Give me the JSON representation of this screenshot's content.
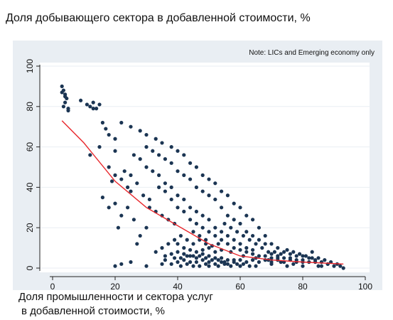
{
  "chart_data": {
    "type": "scatter",
    "title": "Доля добывающего сектора в добавленной стоимости, %",
    "note": "Note: LICs and Emerging economy only",
    "xlabel_line1": "Доля промышленности и сектора услуг",
    "xlabel_line2": "в добавленной стоимости, %",
    "xlim": [
      0,
      100
    ],
    "ylim": [
      0,
      100
    ],
    "x_ticks": [
      "0",
      "20",
      "40",
      "60",
      "80",
      "100"
    ],
    "y_ticks": [
      "0",
      "20",
      "40",
      "60",
      "80",
      "100"
    ],
    "grid": true,
    "colors": {
      "points": "#1b3553",
      "fit": "#e8262b",
      "grid": "#e9eef3"
    },
    "fit_line": {
      "x": [
        3,
        10,
        20,
        30,
        40,
        50,
        60,
        70,
        80,
        93
      ],
      "y": [
        73,
        62,
        43,
        30,
        21,
        12,
        6,
        4,
        3,
        2
      ]
    },
    "points": [
      [
        3,
        90
      ],
      [
        3.5,
        88
      ],
      [
        4,
        86
      ],
      [
        4.5,
        84
      ],
      [
        4,
        82
      ],
      [
        3.5,
        80
      ],
      [
        5,
        79
      ],
      [
        4,
        85
      ],
      [
        5,
        78
      ],
      [
        3,
        87
      ],
      [
        9,
        83
      ],
      [
        11,
        81
      ],
      [
        12,
        80
      ],
      [
        13,
        82
      ],
      [
        14,
        79
      ],
      [
        15,
        81
      ],
      [
        13,
        79
      ],
      [
        16,
        72
      ],
      [
        18,
        66
      ],
      [
        17,
        69
      ],
      [
        20,
        64
      ],
      [
        20,
        58
      ],
      [
        12,
        56
      ],
      [
        15,
        60
      ],
      [
        18,
        50
      ],
      [
        20,
        46
      ],
      [
        22,
        44
      ],
      [
        24,
        40
      ],
      [
        19,
        43
      ],
      [
        25,
        38
      ],
      [
        16,
        35
      ],
      [
        18,
        30
      ],
      [
        20,
        32
      ],
      [
        21,
        20
      ],
      [
        22,
        26
      ],
      [
        24,
        30
      ],
      [
        26,
        24
      ],
      [
        28,
        16
      ],
      [
        30,
        20
      ],
      [
        27,
        12
      ],
      [
        20,
        1
      ],
      [
        22,
        2
      ],
      [
        25,
        3
      ],
      [
        30,
        1
      ],
      [
        35,
        2
      ],
      [
        40,
        3
      ],
      [
        45,
        1
      ],
      [
        50,
        1
      ],
      [
        55,
        2
      ],
      [
        60,
        1
      ],
      [
        65,
        1
      ],
      [
        70,
        2
      ],
      [
        75,
        1
      ],
      [
        80,
        1
      ],
      [
        85,
        1
      ],
      [
        90,
        1
      ],
      [
        93,
        0
      ],
      [
        92,
        1
      ],
      [
        88,
        2
      ],
      [
        86,
        1
      ],
      [
        22,
        72
      ],
      [
        25,
        70
      ],
      [
        28,
        68
      ],
      [
        30,
        66
      ],
      [
        33,
        64
      ],
      [
        35,
        62
      ],
      [
        38,
        60
      ],
      [
        40,
        58
      ],
      [
        42,
        56
      ],
      [
        44,
        52
      ],
      [
        46,
        50
      ],
      [
        48,
        46
      ],
      [
        50,
        44
      ],
      [
        52,
        42
      ],
      [
        54,
        38
      ],
      [
        56,
        36
      ],
      [
        58,
        32
      ],
      [
        60,
        30
      ],
      [
        62,
        26
      ],
      [
        64,
        24
      ],
      [
        66,
        20
      ],
      [
        68,
        16
      ],
      [
        70,
        12
      ],
      [
        72,
        10
      ],
      [
        74,
        8
      ],
      [
        76,
        7
      ],
      [
        78,
        6
      ],
      [
        80,
        6
      ],
      [
        82,
        5
      ],
      [
        84,
        4
      ],
      [
        30,
        60
      ],
      [
        32,
        58
      ],
      [
        34,
        56
      ],
      [
        36,
        54
      ],
      [
        38,
        52
      ],
      [
        40,
        48
      ],
      [
        42,
        46
      ],
      [
        44,
        44
      ],
      [
        46,
        40
      ],
      [
        48,
        38
      ],
      [
        50,
        36
      ],
      [
        52,
        34
      ],
      [
        54,
        30
      ],
      [
        56,
        26
      ],
      [
        58,
        24
      ],
      [
        60,
        22
      ],
      [
        62,
        18
      ],
      [
        64,
        16
      ],
      [
        66,
        14
      ],
      [
        68,
        12
      ],
      [
        26,
        56
      ],
      [
        28,
        54
      ],
      [
        30,
        50
      ],
      [
        32,
        48
      ],
      [
        34,
        46
      ],
      [
        36,
        42
      ],
      [
        38,
        40
      ],
      [
        40,
        36
      ],
      [
        42,
        34
      ],
      [
        44,
        30
      ],
      [
        46,
        28
      ],
      [
        48,
        26
      ],
      [
        50,
        24
      ],
      [
        52,
        20
      ],
      [
        54,
        18
      ],
      [
        56,
        16
      ],
      [
        58,
        14
      ],
      [
        60,
        12
      ],
      [
        62,
        10
      ],
      [
        64,
        9
      ],
      [
        34,
        40
      ],
      [
        36,
        38
      ],
      [
        38,
        34
      ],
      [
        40,
        30
      ],
      [
        42,
        28
      ],
      [
        44,
        24
      ],
      [
        46,
        22
      ],
      [
        48,
        20
      ],
      [
        50,
        18
      ],
      [
        52,
        16
      ],
      [
        54,
        14
      ],
      [
        56,
        12
      ],
      [
        58,
        10
      ],
      [
        60,
        9
      ],
      [
        62,
        8
      ],
      [
        64,
        7
      ],
      [
        66,
        6
      ],
      [
        68,
        6
      ],
      [
        70,
        5
      ],
      [
        72,
        5
      ],
      [
        40,
        12
      ],
      [
        42,
        10
      ],
      [
        44,
        9
      ],
      [
        46,
        8
      ],
      [
        48,
        7
      ],
      [
        50,
        6
      ],
      [
        52,
        5
      ],
      [
        54,
        5
      ],
      [
        56,
        4
      ],
      [
        58,
        4
      ],
      [
        42,
        4
      ],
      [
        44,
        3
      ],
      [
        46,
        3
      ],
      [
        48,
        4
      ],
      [
        50,
        3
      ],
      [
        52,
        2
      ],
      [
        54,
        3
      ],
      [
        56,
        2
      ],
      [
        58,
        3
      ],
      [
        60,
        4
      ],
      [
        62,
        3
      ],
      [
        64,
        4
      ],
      [
        66,
        3
      ],
      [
        68,
        4
      ],
      [
        70,
        3
      ],
      [
        72,
        4
      ],
      [
        74,
        3
      ],
      [
        76,
        4
      ],
      [
        78,
        3
      ],
      [
        80,
        3
      ],
      [
        36,
        6
      ],
      [
        38,
        7
      ],
      [
        40,
        8
      ],
      [
        42,
        7
      ],
      [
        44,
        6
      ],
      [
        46,
        5
      ],
      [
        48,
        9
      ],
      [
        50,
        10
      ],
      [
        52,
        8
      ],
      [
        54,
        9
      ],
      [
        33,
        8
      ],
      [
        35,
        10
      ],
      [
        37,
        12
      ],
      [
        39,
        14
      ],
      [
        41,
        16
      ],
      [
        43,
        14
      ],
      [
        45,
        12
      ],
      [
        47,
        14
      ],
      [
        49,
        12
      ],
      [
        51,
        11
      ],
      [
        70,
        7
      ],
      [
        72,
        6
      ],
      [
        74,
        5
      ],
      [
        76,
        5
      ],
      [
        78,
        4
      ],
      [
        80,
        4
      ],
      [
        82,
        3
      ],
      [
        84,
        3
      ],
      [
        86,
        3
      ],
      [
        88,
        2
      ],
      [
        31,
        34
      ],
      [
        29,
        36
      ],
      [
        27,
        42
      ],
      [
        25,
        46
      ],
      [
        23,
        48
      ],
      [
        35,
        26
      ],
      [
        37,
        24
      ],
      [
        39,
        22
      ],
      [
        33,
        28
      ],
      [
        31,
        30
      ],
      [
        45,
        18
      ],
      [
        47,
        16
      ],
      [
        49,
        14
      ],
      [
        53,
        12
      ],
      [
        57,
        8
      ],
      [
        61,
        6
      ],
      [
        65,
        5
      ],
      [
        69,
        4
      ],
      [
        73,
        3
      ],
      [
        77,
        2
      ],
      [
        55,
        22
      ],
      [
        57,
        20
      ],
      [
        59,
        18
      ],
      [
        61,
        16
      ],
      [
        63,
        14
      ],
      [
        65,
        12
      ],
      [
        67,
        10
      ],
      [
        69,
        8
      ],
      [
        71,
        8
      ],
      [
        73,
        7
      ],
      [
        38,
        2
      ],
      [
        41,
        1
      ],
      [
        43,
        2
      ],
      [
        47,
        1
      ],
      [
        49,
        2
      ],
      [
        53,
        1
      ],
      [
        57,
        1
      ],
      [
        59,
        2
      ],
      [
        61,
        2
      ],
      [
        63,
        1
      ],
      [
        36,
        4
      ],
      [
        39,
        5
      ],
      [
        41,
        5
      ],
      [
        43,
        6
      ],
      [
        45,
        6
      ],
      [
        47,
        6
      ],
      [
        49,
        5
      ],
      [
        51,
        4
      ],
      [
        53,
        4
      ],
      [
        55,
        3
      ],
      [
        75,
        9
      ],
      [
        77,
        8
      ],
      [
        79,
        7
      ],
      [
        81,
        6
      ],
      [
        83,
        5
      ],
      [
        85,
        5
      ],
      [
        87,
        4
      ],
      [
        89,
        3
      ],
      [
        91,
        2
      ],
      [
        83,
        8
      ]
    ]
  }
}
